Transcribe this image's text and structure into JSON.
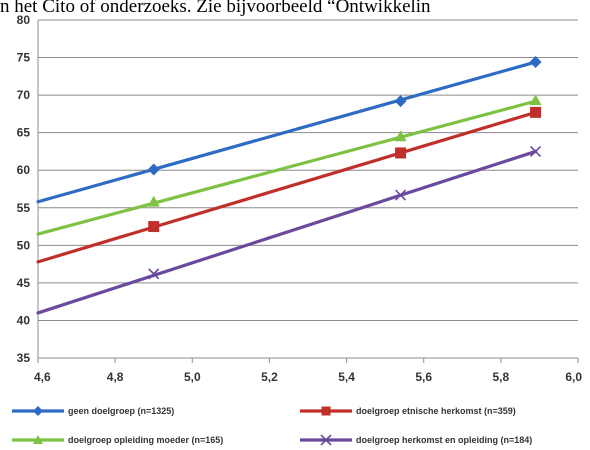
{
  "caption": "n het Cito of onderzoeks. Zie bijvoorbeeld “Ontwikkelin",
  "chart_data": {
    "type": "line",
    "title": "",
    "xlabel": "",
    "ylabel": "",
    "xlim": [
      4.6,
      6.0
    ],
    "ylim": [
      35,
      80
    ],
    "xticks": [
      "4,6",
      "4,8",
      "5,0",
      "5,2",
      "5,4",
      "5,6",
      "5,8",
      "6,0"
    ],
    "yticks": [
      "35",
      "40",
      "45",
      "50",
      "55",
      "60",
      "65",
      "70",
      "75",
      "80"
    ],
    "grid": "horizontal",
    "legend_position": "bottom",
    "series": [
      {
        "name": "geen doelgroep (n=1325)",
        "color": "#2e6bc4",
        "marker": "diamond",
        "line": [
          [
            4.6,
            55.8
          ],
          [
            5.89,
            74.4
          ]
        ],
        "points": [
          [
            4.9,
            60.1
          ],
          [
            5.54,
            69.2
          ],
          [
            5.89,
            74.4
          ]
        ]
      },
      {
        "name": "doelgroep etnische herkomst (n=359)",
        "color": "#c0302b",
        "marker": "square",
        "line": [
          [
            4.6,
            47.8
          ],
          [
            5.89,
            67.7
          ]
        ],
        "points": [
          [
            4.9,
            52.5
          ],
          [
            5.54,
            62.3
          ],
          [
            5.89,
            67.7
          ]
        ]
      },
      {
        "name": "doelgroep opleiding moeder (n=165)",
        "color": "#7dc242",
        "marker": "triangle",
        "line": [
          [
            4.6,
            51.5
          ],
          [
            5.89,
            69.2
          ]
        ],
        "points": [
          [
            4.9,
            55.8
          ],
          [
            5.54,
            64.5
          ],
          [
            5.89,
            69.3
          ]
        ]
      },
      {
        "name": "doelgroep herkomst en opleiding (n=184)",
        "color": "#6a4a9c",
        "marker": "x",
        "line": [
          [
            4.6,
            41.0
          ],
          [
            5.89,
            62.5
          ]
        ],
        "points": [
          [
            4.9,
            46.2
          ],
          [
            5.54,
            56.7
          ],
          [
            5.89,
            62.5
          ]
        ]
      }
    ]
  }
}
